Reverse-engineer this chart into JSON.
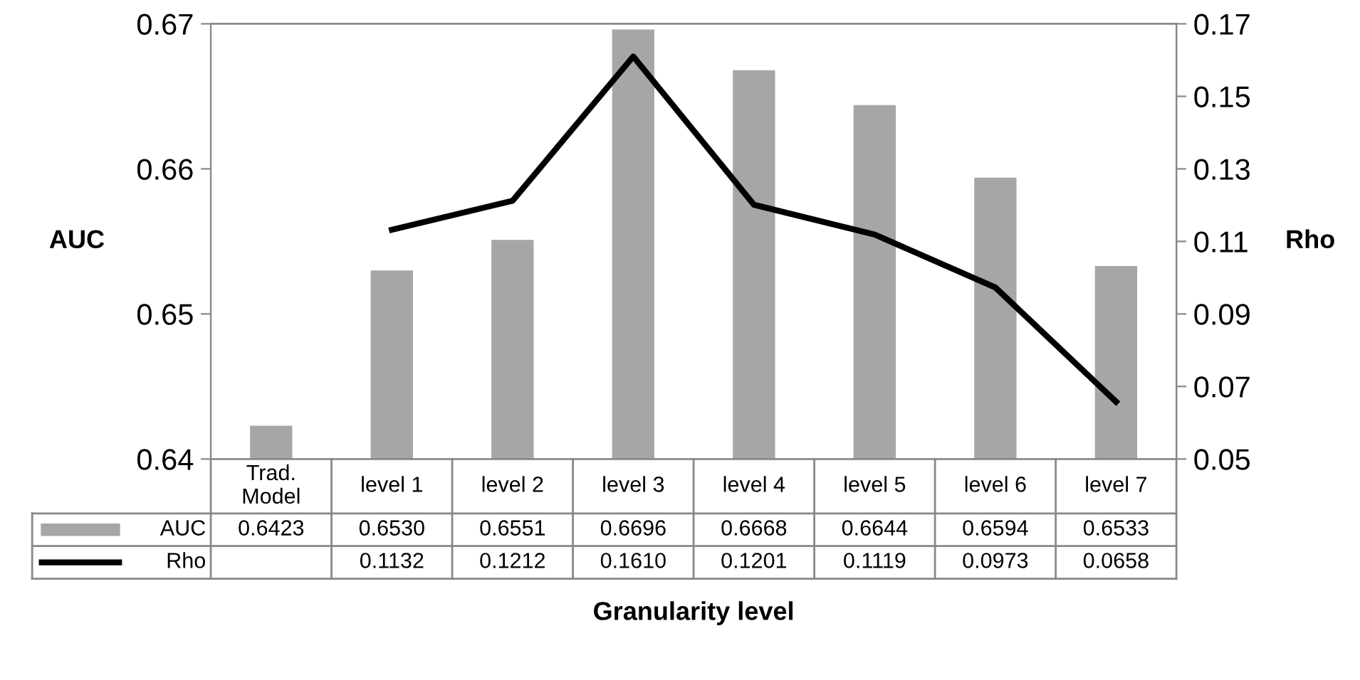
{
  "chart_data": {
    "type": "bar",
    "xlabel": "Granularity level",
    "ylabel": "AUC",
    "y2label": "Rho",
    "categories": [
      "Trad. Model",
      "level 1",
      "level 2",
      "level 3",
      "level 4",
      "level 5",
      "level 6",
      "level 7"
    ],
    "series": [
      {
        "name": "AUC",
        "color": "#a6a6a6",
        "values": [
          0.6423,
          0.653,
          0.6551,
          0.6696,
          0.6668,
          0.6644,
          0.6594,
          0.6533
        ],
        "value_labels": [
          "0.6423",
          "0.6530",
          "0.6551",
          "0.6696",
          "0.6668",
          "0.6644",
          "0.6594",
          "0.6533"
        ]
      },
      {
        "name": "Rho",
        "type": "line",
        "axis": "y2",
        "color": "#000000",
        "values": [
          null,
          0.1132,
          0.1212,
          0.161,
          0.1201,
          0.1119,
          0.0973,
          0.0658
        ],
        "value_labels": [
          null,
          "0.1132",
          "0.1212",
          "0.1610",
          "0.1201",
          "0.1119",
          "0.0973",
          "0.0658"
        ]
      }
    ],
    "ylim": [
      0.64,
      0.67
    ],
    "yticks": [
      0.64,
      0.65,
      0.66,
      0.67
    ],
    "y2lim": [
      0.05,
      0.17
    ],
    "y2ticks": [
      0.05,
      0.07,
      0.09,
      0.11,
      0.13,
      0.15,
      0.17
    ],
    "grid": false,
    "legend": "bottom",
    "line_style": "solid",
    "marker": "none"
  }
}
